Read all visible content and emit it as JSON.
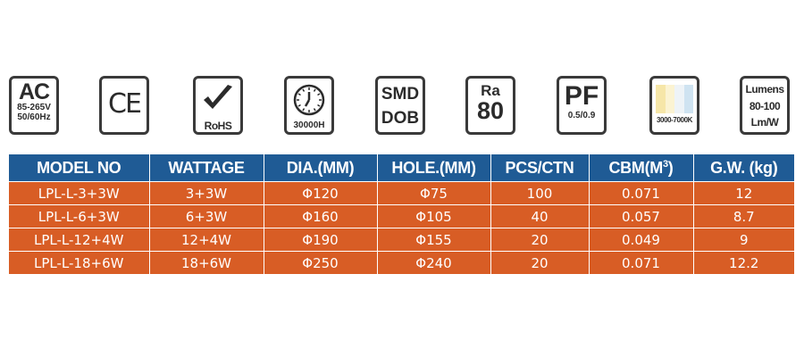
{
  "icons": [
    {
      "name": "ac-voltage-icon",
      "big": "AC",
      "lines": [
        "85-265V",
        "50/60Hz"
      ]
    },
    {
      "name": "ce-mark-icon",
      "big": "CE"
    },
    {
      "name": "rohs-icon",
      "label": "RoHS"
    },
    {
      "name": "lifetime-clock-icon",
      "label": "30000H"
    },
    {
      "name": "smd-dob-icon",
      "lines": [
        "SMD",
        "DOB"
      ]
    },
    {
      "name": "ra-icon",
      "small": "Ra",
      "big": "80"
    },
    {
      "name": "power-factor-icon",
      "big": "PF",
      "label": "0.5/0.9"
    },
    {
      "name": "color-temperature-icon",
      "label": "3000-7000K",
      "colors": [
        "#f6e6a8",
        "#fbf3d2",
        "#eef3f7",
        "#cfe3f1"
      ]
    },
    {
      "name": "lumens-icon",
      "lines": [
        "Lumens",
        "80-100",
        "Lm/W"
      ]
    }
  ],
  "table": {
    "headers": [
      "MODEL NO",
      "WATTAGE",
      "DIA.(MM)",
      "HOLE.(MM)",
      "PCS/CTN",
      "CBM(M",
      "G.W. (kg)"
    ],
    "cbm_superscript": "3",
    "cbm_close": ")",
    "rows": [
      [
        "LPL-L-3+3W",
        "3+3W",
        "Φ120",
        "Φ75",
        "100",
        "0.071",
        "12"
      ],
      [
        "LPL-L-6+3W",
        "6+3W",
        "Φ160",
        "Φ105",
        "40",
        "0.057",
        "8.7"
      ],
      [
        "LPL-L-12+4W",
        "12+4W",
        "Φ190",
        "Φ155",
        "20",
        "0.049",
        "9"
      ],
      [
        "LPL-L-18+6W",
        "18+6W",
        "Φ250",
        "Φ240",
        "20",
        "0.071",
        "12.2"
      ]
    ]
  },
  "colors": {
    "header_bg": "#1f5b95",
    "row_bg": "#d85d25",
    "icon_border": "#3a3a3a"
  }
}
